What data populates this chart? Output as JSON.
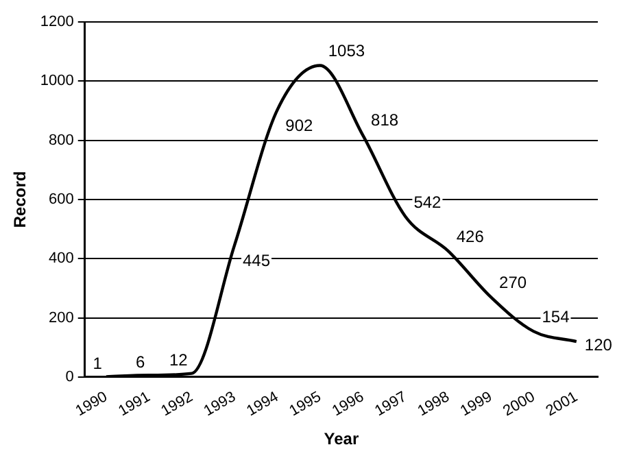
{
  "chart_data": {
    "type": "line",
    "xlabel": "Year",
    "ylabel": "Record",
    "categories": [
      "1990",
      "1991",
      "1992",
      "1993",
      "1994",
      "1995",
      "1996",
      "1997",
      "1998",
      "1999",
      "2000",
      "2001"
    ],
    "series": [
      {
        "color": "#000000",
        "values": [
          1,
          6,
          12,
          445,
          902,
          1053,
          818,
          542,
          426,
          270,
          154,
          120
        ]
      }
    ],
    "ylim": [
      0,
      1200
    ],
    "yticks": [
      0,
      200,
      400,
      600,
      800,
      1000,
      1200
    ],
    "grid": "y",
    "legend": false,
    "marker": "none",
    "line_style": "solid",
    "data_labels": true
  }
}
